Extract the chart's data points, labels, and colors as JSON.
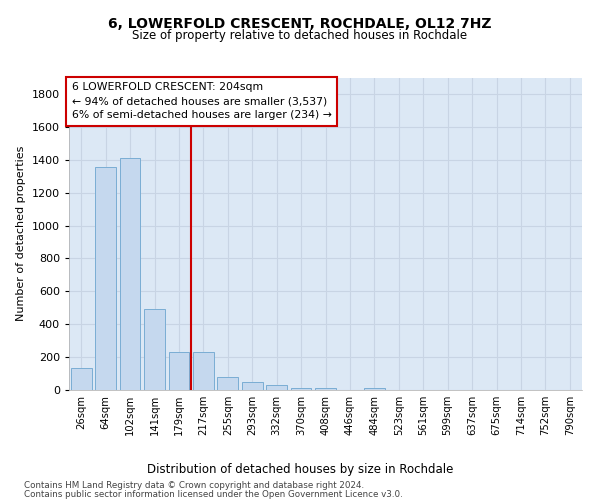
{
  "title_line1": "6, LOWERFOLD CRESCENT, ROCHDALE, OL12 7HZ",
  "title_line2": "Size of property relative to detached houses in Rochdale",
  "xlabel": "Distribution of detached houses by size in Rochdale",
  "ylabel": "Number of detached properties",
  "categories": [
    "26sqm",
    "64sqm",
    "102sqm",
    "141sqm",
    "179sqm",
    "217sqm",
    "255sqm",
    "293sqm",
    "332sqm",
    "370sqm",
    "408sqm",
    "446sqm",
    "484sqm",
    "523sqm",
    "561sqm",
    "599sqm",
    "637sqm",
    "675sqm",
    "714sqm",
    "752sqm",
    "790sqm"
  ],
  "values": [
    135,
    1355,
    1410,
    490,
    230,
    230,
    80,
    50,
    30,
    15,
    15,
    0,
    15,
    0,
    0,
    0,
    0,
    0,
    0,
    0,
    0
  ],
  "bar_color": "#c5d8ee",
  "bar_edge_color": "#7aadd4",
  "vline_index": 4.5,
  "annotation_title": "6 LOWERFOLD CRESCENT: 204sqm",
  "annotation_line1": "← 94% of detached houses are smaller (3,537)",
  "annotation_line2": "6% of semi-detached houses are larger (234) →",
  "annotation_box_facecolor": "#ffffff",
  "annotation_box_edgecolor": "#cc0000",
  "vline_color": "#cc0000",
  "ylim": [
    0,
    1900
  ],
  "yticks": [
    0,
    200,
    400,
    600,
    800,
    1000,
    1200,
    1400,
    1600,
    1800
  ],
  "grid_color": "#c8d4e4",
  "bg_color": "#dce8f5",
  "footer1": "Contains HM Land Registry data © Crown copyright and database right 2024.",
  "footer2": "Contains public sector information licensed under the Open Government Licence v3.0."
}
